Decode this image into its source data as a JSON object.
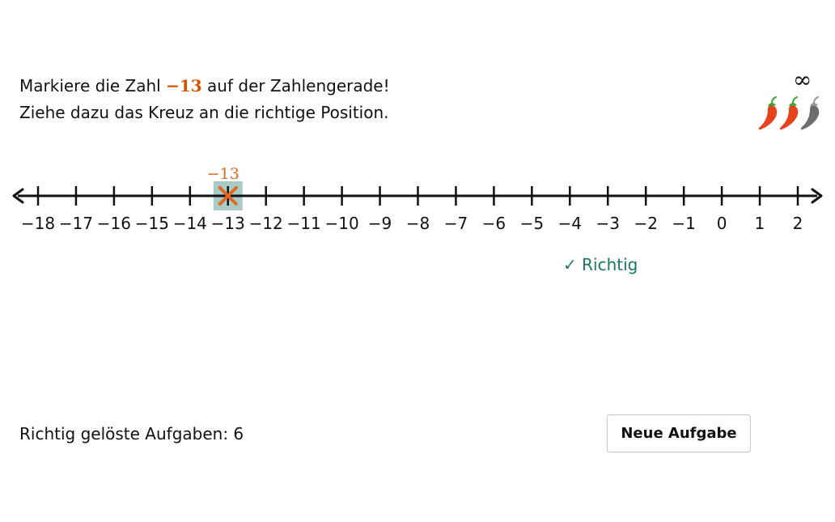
{
  "task": {
    "line1_before": "Markiere die Zahl ",
    "target_label": "−13",
    "line1_after": " auf der Zahlengerade!",
    "line2": "Ziehe dazu das Kreuz an die richtige Position."
  },
  "difficulty": {
    "infinity_symbol": "∞",
    "chili_count": 3,
    "chili_active": 2,
    "chili_colors": {
      "active": "#e8421c",
      "inactive": "#6d6d6d",
      "stem_active": "#3fa52f",
      "stem_inactive": "#9a9a9a"
    }
  },
  "numberline": {
    "min": -18,
    "max": 2,
    "tick_labels": [
      "−18",
      "−17",
      "−16",
      "−15",
      "−14",
      "−13",
      "−12",
      "−11",
      "−10",
      "−9",
      "−8",
      "−7",
      "−6",
      "−5",
      "−4",
      "−3",
      "−2",
      "−1",
      "0",
      "1",
      "2"
    ],
    "marker_value": -13,
    "marker_label": "−13",
    "marker_color": "#e0681e",
    "highlight_color": "#a8cbc5"
  },
  "feedback": {
    "text": "✓ Richtig",
    "color": "#1a7a60"
  },
  "footer": {
    "solved_label": "Richtig gelöste Aufgaben: 6",
    "new_task_button": "Neue Aufgabe"
  }
}
